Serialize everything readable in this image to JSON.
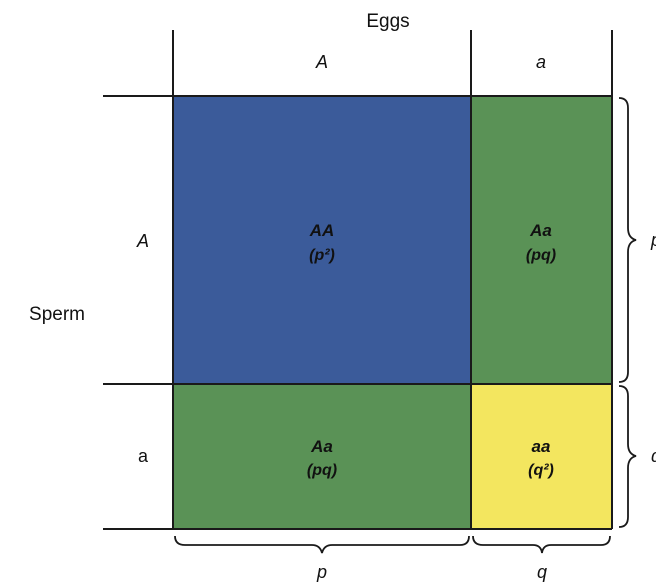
{
  "eggs_title": "Eggs",
  "sperm_title": "Sperm",
  "columns": [
    {
      "allele": "A",
      "frequency_label": "p"
    },
    {
      "allele": "a",
      "frequency_label": "q"
    }
  ],
  "rows": [
    {
      "allele": "A",
      "frequency_label": "p"
    },
    {
      "allele": "a",
      "frequency_label": "q"
    }
  ],
  "cells": [
    {
      "genotype": "AA",
      "frequency": "(p²)",
      "color": "#3b5b9a"
    },
    {
      "genotype": "Aa",
      "frequency": "(pq)",
      "color": "#5a9256"
    },
    {
      "genotype": "Aa",
      "frequency": "(pq)",
      "color": "#5a9256"
    },
    {
      "genotype": "aa",
      "frequency": "(q²)",
      "color": "#f3e65f"
    }
  ]
}
